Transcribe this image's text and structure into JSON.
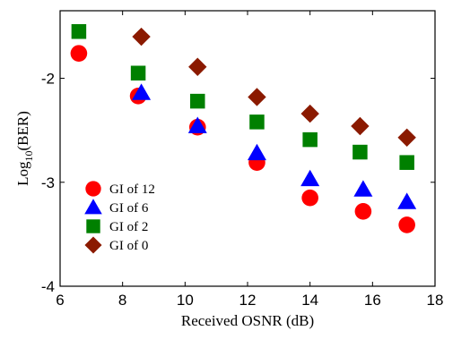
{
  "chart_data": {
    "type": "scatter",
    "xlabel": "Received OSNR (dB)",
    "ylabel_main": "Log",
    "ylabel_sub": "10",
    "ylabel_tail": "(BER)",
    "xlim": [
      6,
      18
    ],
    "ylim": [
      -4,
      -1.35
    ],
    "xticks": [
      6,
      8,
      10,
      12,
      14,
      16,
      18
    ],
    "xtick_labels": [
      "6",
      "8",
      "10",
      "12",
      "14",
      "16",
      "18"
    ],
    "yticks": [
      -2,
      -3,
      -4
    ],
    "ytick_labels": [
      "-2",
      "-3",
      "-4"
    ],
    "grid": false,
    "legend_position": "lower-left",
    "series": [
      {
        "name": "GI of 12",
        "marker": "circle",
        "color": "#ff0000",
        "points": [
          [
            6.6,
            -1.76
          ],
          [
            8.5,
            -2.17
          ],
          [
            10.4,
            -2.47
          ],
          [
            12.3,
            -2.81
          ],
          [
            14.0,
            -3.15
          ],
          [
            15.7,
            -3.28
          ],
          [
            17.1,
            -3.41
          ]
        ]
      },
      {
        "name": "GI of 6",
        "marker": "triangle",
        "color": "#0000ff",
        "points": [
          [
            8.6,
            -2.14
          ],
          [
            10.4,
            -2.46
          ],
          [
            12.3,
            -2.72
          ],
          [
            14.0,
            -2.97
          ],
          [
            15.7,
            -3.07
          ],
          [
            17.1,
            -3.19
          ]
        ]
      },
      {
        "name": "GI of 2",
        "marker": "square",
        "color": "#008000",
        "points": [
          [
            6.6,
            -1.55
          ],
          [
            8.5,
            -1.95
          ],
          [
            10.4,
            -2.22
          ],
          [
            12.3,
            -2.42
          ],
          [
            14.0,
            -2.59
          ],
          [
            15.6,
            -2.71
          ],
          [
            17.1,
            -2.81
          ]
        ]
      },
      {
        "name": "GI of 0",
        "marker": "diamond",
        "color": "#8b1a00",
        "points": [
          [
            8.6,
            -1.6
          ],
          [
            10.4,
            -1.89
          ],
          [
            12.3,
            -2.18
          ],
          [
            14.0,
            -2.34
          ],
          [
            15.6,
            -2.46
          ],
          [
            17.1,
            -2.57
          ]
        ]
      }
    ]
  }
}
